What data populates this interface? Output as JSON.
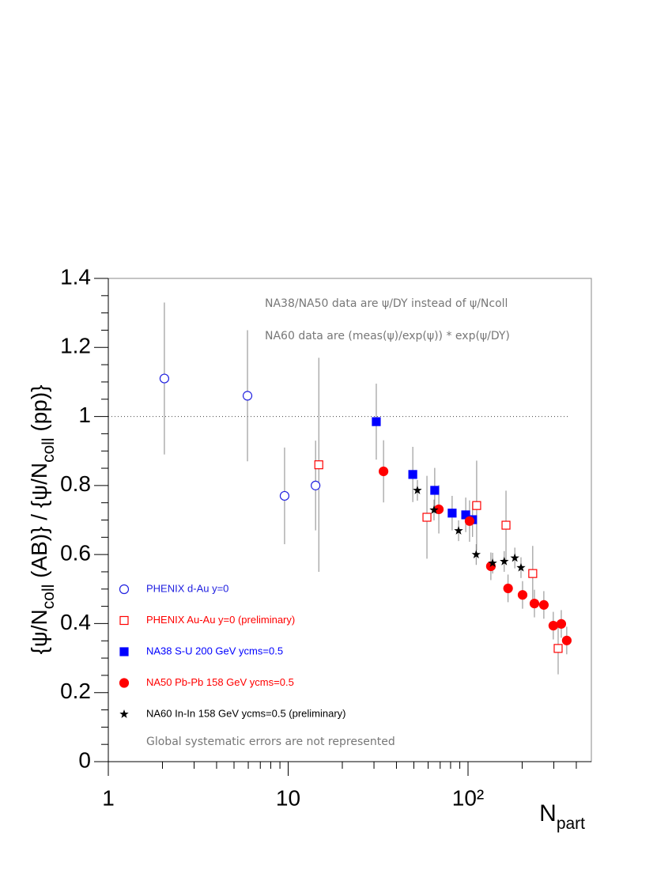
{
  "chart_data": {
    "type": "scatter",
    "x_label": [
      "N",
      "part"
    ],
    "y_label": [
      "{ψ/N",
      "coll",
      " (AB)} / {ψ/N",
      "coll",
      " (pp)}"
    ],
    "xscale": "log",
    "xlim": [
      1,
      485
    ],
    "ylim": [
      0,
      1.4
    ],
    "xticks": [
      1,
      10,
      {
        "value": 100,
        "label": "10²"
      }
    ],
    "yticks": [
      0,
      0.2,
      0.4,
      0.6,
      0.8,
      1,
      1.2,
      1.4
    ],
    "reference_line": {
      "y": 1,
      "xlim": [
        1,
        365
      ]
    },
    "annotations": [
      "NA38/NA50 data are ψ/DY instead of ψ/Ncoll",
      "NA60 data are (meas(ψ)/exp(ψ)) * exp(ψ/DY)",
      "Global systematic errors are not represented"
    ],
    "series": [
      {
        "name": "PHENIX d-Au y=0",
        "color": "#2020e0",
        "marker": "circle-open",
        "x": [
          2.05,
          5.94,
          9.55,
          14.2
        ],
        "values": [
          1.11,
          1.06,
          0.77,
          0.8
        ],
        "errors": [
          0.22,
          0.19,
          0.14,
          0.13
        ]
      },
      {
        "name": "PHENIX Au-Au y=0 (preliminary)",
        "color": "#ff0000",
        "marker": "square-open",
        "x": [
          14.8,
          59.1,
          111.7,
          162.6,
          229,
          317
        ],
        "values": [
          0.86,
          0.708,
          0.742,
          0.685,
          0.545,
          0.328
        ],
        "errors": [
          0.31,
          0.12,
          0.13,
          0.1,
          0.08,
          0.075
        ]
      },
      {
        "name": "NA38 S-U 200 GeV ycms=0.5",
        "color": "#0000ff",
        "marker": "square",
        "x": [
          30.9,
          49.3,
          65.3,
          81.6,
          97.1,
          106
        ],
        "values": [
          0.985,
          0.832,
          0.786,
          0.72,
          0.715,
          0.701
        ],
        "errors": [
          0.11,
          0.08,
          0.065,
          0.05,
          0.05,
          0.05
        ]
      },
      {
        "name": "NA50 Pb-Pb 158 GeV ycms=0.5",
        "color": "#ff0000",
        "marker": "circle",
        "x": [
          33.9,
          68.8,
          102,
          134,
          167,
          201,
          234,
          264,
          298,
          330,
          354
        ],
        "values": [
          0.841,
          0.731,
          0.697,
          0.566,
          0.502,
          0.483,
          0.458,
          0.454,
          0.394,
          0.399,
          0.351
        ],
        "errors": [
          0.09,
          0.07,
          0.06,
          0.04,
          0.04,
          0.04,
          0.04,
          0.04,
          0.04,
          0.04,
          0.04
        ]
      },
      {
        "name": "NA60 In-In 158 GeV ycms=0.5 (preliminary)",
        "color": "#000000",
        "marker": "star",
        "x": [
          52.3,
          64.7,
          88.6,
          111,
          137,
          159,
          182,
          197
        ],
        "values": [
          0.786,
          0.729,
          0.669,
          0.6,
          0.575,
          0.58,
          0.59,
          0.562
        ],
        "errors": [
          0.03,
          0.03,
          0.03,
          0.03,
          0.03,
          0.03,
          0.03,
          0.03
        ]
      }
    ]
  }
}
